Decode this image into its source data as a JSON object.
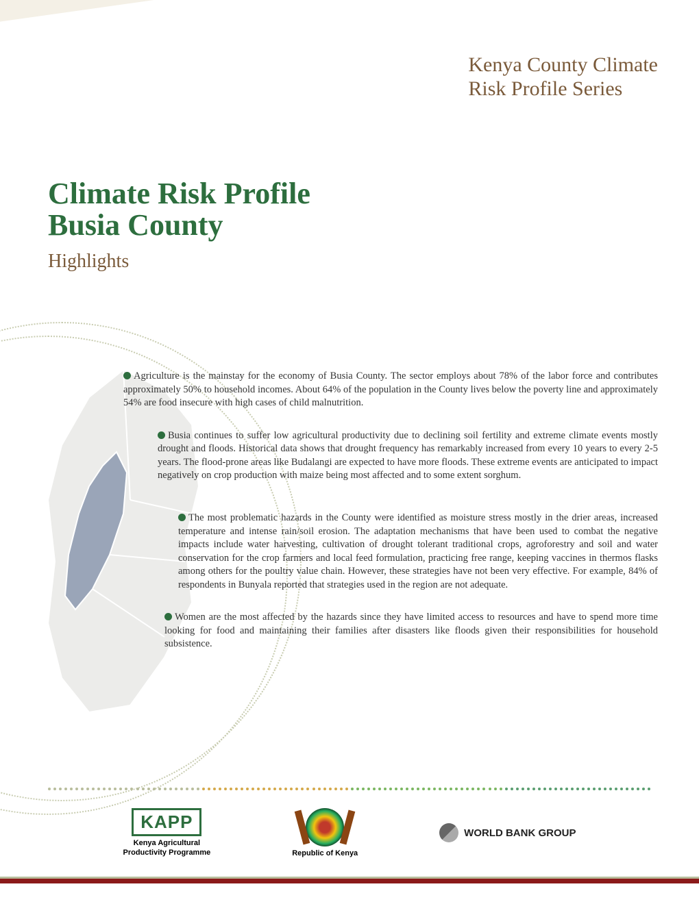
{
  "header": {
    "series_line1": "Kenya County Climate",
    "series_line2": "Risk Profile Series"
  },
  "title": {
    "line1": "Climate Risk Profile",
    "line2": "Busia County",
    "subtitle": "Highlights"
  },
  "colors": {
    "primary_green": "#2d6e3e",
    "brown_text": "#7a5a3a",
    "band_olive": "#b8bd9c",
    "band_cream": "#f4f0e6",
    "map_fill": "#e5e5e0",
    "map_highlight": "#9aa5b8",
    "footer_bar": "#8b1a1a"
  },
  "highlights": [
    "Agriculture is the mainstay for the economy of Busia County. The sector employs about 78% of the labor force and contributes approximately 50% to household incomes. About 64% of the population in the County lives below the poverty line and approximately 54% are food insecure with high cases of child malnutrition.",
    "Busia continues to suffer low agricultural productivity due to declining soil fertility and extreme climate events mostly drought and floods. Historical data shows that drought frequency has remarkably increased from every 10 years to every 2-5 years. The flood-prone areas like Budalangi are expected to have more floods. These extreme events are anticipated to impact negatively on crop production with maize being most affected and to some extent sorghum.",
    "The most problematic hazards in the County were identified as moisture stress mostly in the drier areas, increased temperature and intense rain/soil erosion. The adaptation mechanisms that have been used to combat the negative impacts include water harvesting, cultivation of drought tolerant traditional crops, agroforestry and soil and water conservation for the crop farmers and local feed formulation, practicing free range, keeping vaccines in thermos flasks among others for the poultry value chain. However, these strategies have not been very effective. For example, 84% of respondents in Bunyala reported that strategies used in the region are not adequate.",
    "Women are the most affected by the hazards since they have limited access to resources and have to spend more time looking for food and maintaining their families after disasters like floods given their responsibilities for household subsistence."
  ],
  "footer": {
    "logos": {
      "kapp": {
        "label": "KAPP",
        "sub1": "Kenya Agricultural",
        "sub2": "Productivity Programme"
      },
      "rok": {
        "label": "Republic of Kenya"
      },
      "wbg": {
        "label": "WORLD BANK GROUP"
      }
    },
    "dot_colors": [
      "#b8bd9c",
      "#d4a94a",
      "#7bb661",
      "#5a9e6f"
    ]
  }
}
